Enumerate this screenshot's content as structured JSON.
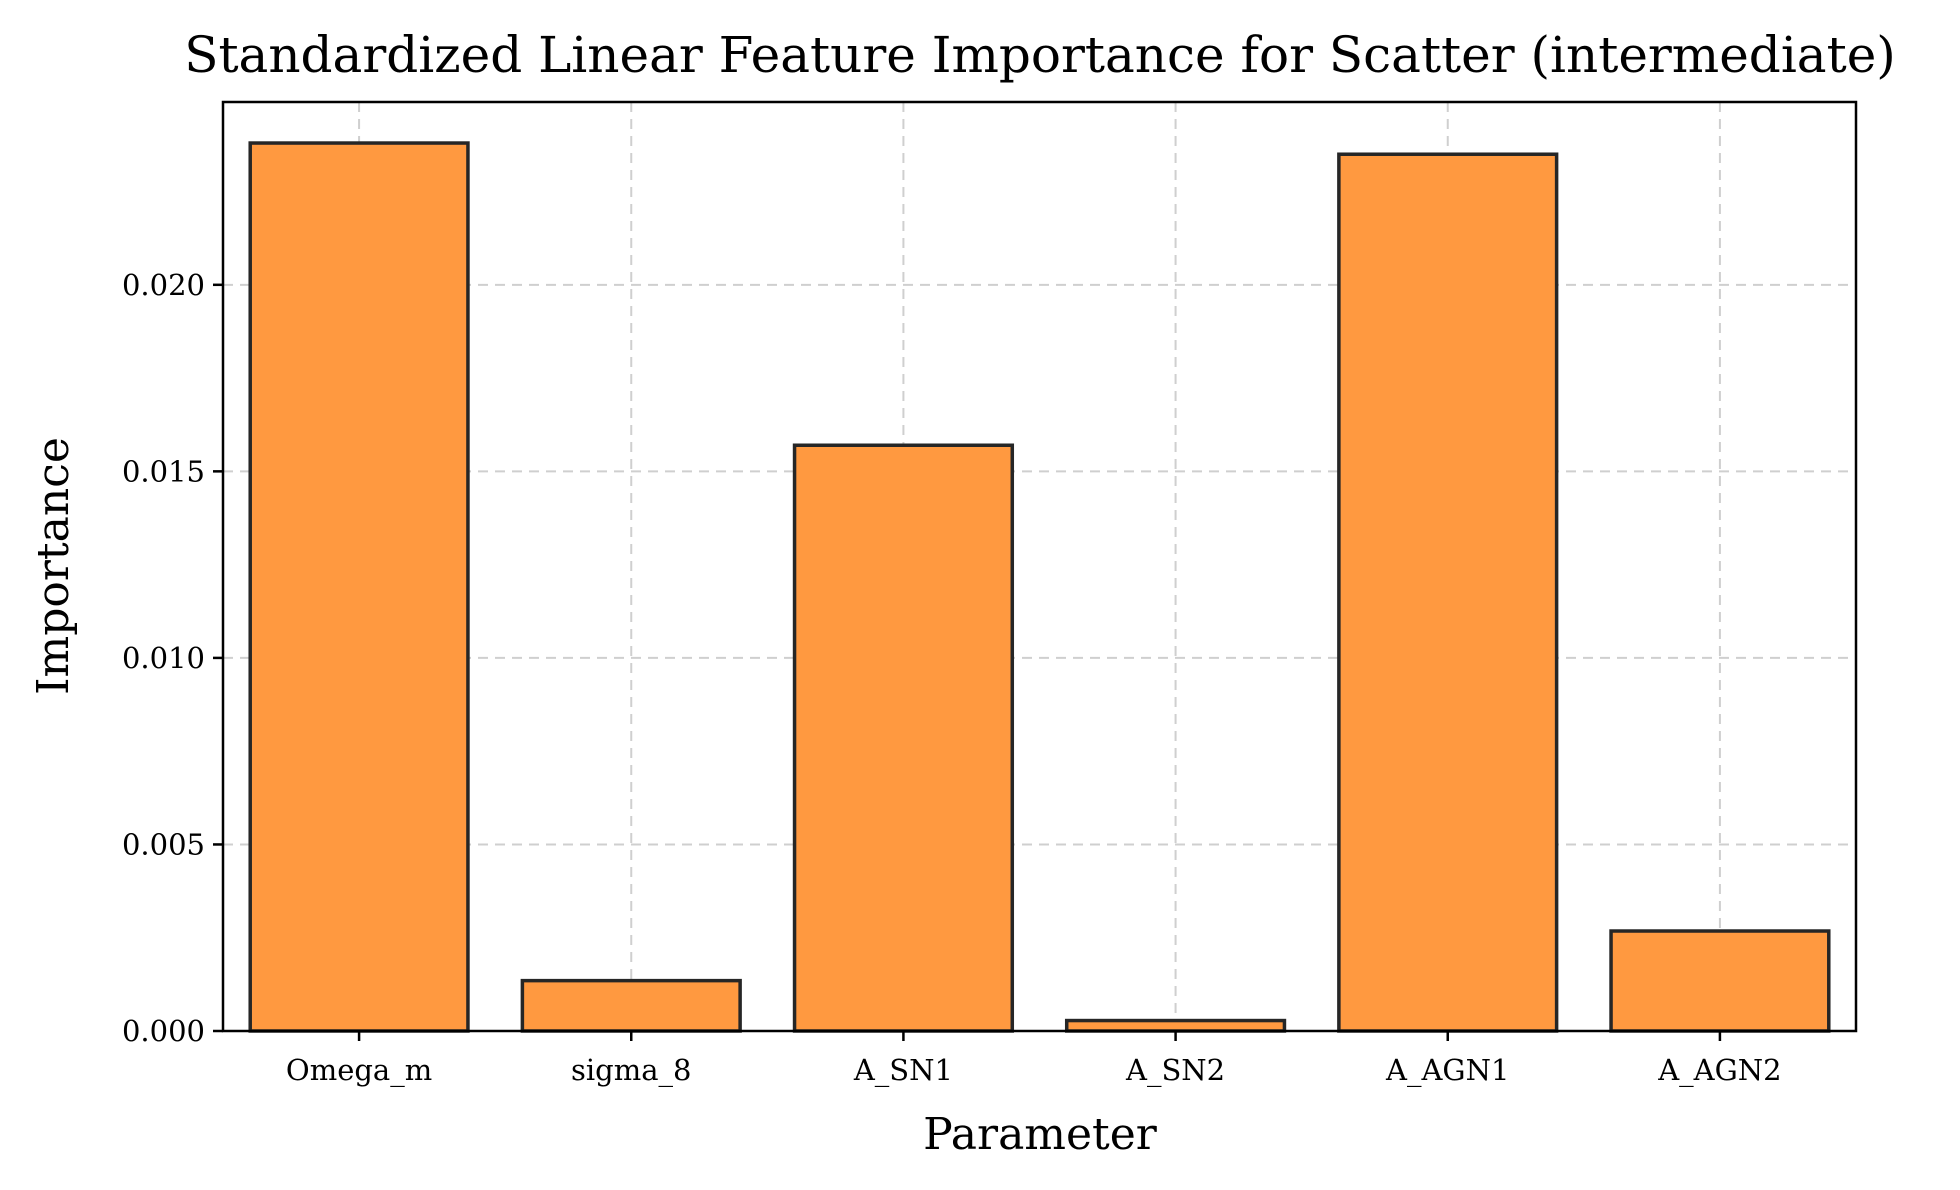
{
  "chart_data": {
    "type": "bar",
    "title": "Standardized Linear Feature Importance for Scatter (intermediate)",
    "xlabel": "Parameter",
    "ylabel": "Importance",
    "categories": [
      "Omega_m",
      "sigma_8",
      "A_SN1",
      "A_SN2",
      "A_AGN1",
      "A_AGN2"
    ],
    "values": [
      0.0238,
      0.00135,
      0.0157,
      0.00028,
      0.0235,
      0.00268
    ],
    "ylim": [
      0,
      0.0249
    ],
    "yticks": [
      0.0,
      0.005,
      0.01,
      0.015,
      0.02
    ],
    "ytick_labels": [
      "0.000",
      "0.005",
      "0.010",
      "0.015",
      "0.020"
    ],
    "grid": true,
    "colors": {
      "bar_fill": "#ff9940",
      "bar_edge": "#262626",
      "grid": "#cfcfcf"
    }
  }
}
